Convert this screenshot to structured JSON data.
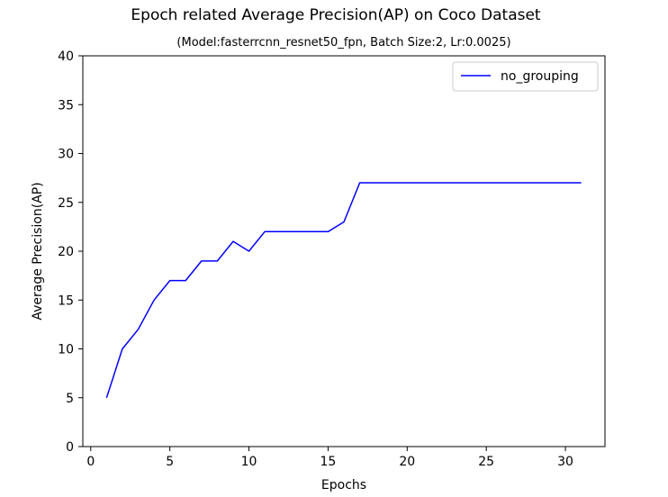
{
  "chart_data": {
    "type": "line",
    "title": "Epoch related Average Precision(AP) on Coco Dataset",
    "subtitle": "(Model:fasterrcnn_resnet50_fpn, Batch Size:2, Lr:0.0025)",
    "xlabel": "Epochs",
    "ylabel": "Average Precision(AP)",
    "xlim": [
      -0.5,
      32.5
    ],
    "ylim": [
      0,
      40
    ],
    "xticks": [
      0,
      5,
      10,
      15,
      20,
      25,
      30
    ],
    "yticks": [
      0,
      5,
      10,
      15,
      20,
      25,
      30,
      35,
      40
    ],
    "grid": false,
    "legend_position": "top-right",
    "series": [
      {
        "name": "no_grouping",
        "color": "#0000ff",
        "x": [
          1,
          2,
          3,
          4,
          5,
          6,
          7,
          8,
          9,
          10,
          11,
          12,
          13,
          14,
          15,
          16,
          17,
          18,
          19,
          20,
          21,
          22,
          23,
          24,
          25,
          26,
          27,
          28,
          29,
          30,
          31
        ],
        "y": [
          5,
          10,
          12,
          15,
          17,
          17,
          19,
          19,
          21,
          20,
          22,
          22,
          22,
          22,
          22,
          23,
          27,
          27,
          27,
          27,
          27,
          27,
          27,
          27,
          27,
          27,
          27,
          27,
          27,
          27,
          27
        ]
      }
    ]
  }
}
